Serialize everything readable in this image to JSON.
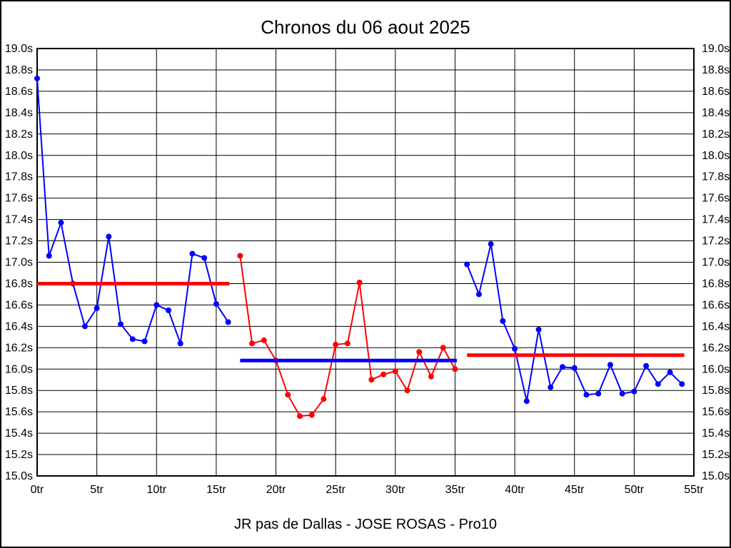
{
  "title": "Chronos du 06 aout 2025",
  "caption": "JR pas de Dallas - JOSE ROSAS - Pro10",
  "colors": {
    "blue_series": "#0000ff",
    "red_series": "#ff0000",
    "grid": "#000000",
    "text": "#000000",
    "background": "#ffffff"
  },
  "chart_data": {
    "type": "line",
    "title": "Chronos du 06 aout 2025",
    "subtitle": "JR pas de Dallas - JOSE ROSAS - Pro10",
    "xlabel": "",
    "ylabel": "",
    "x_unit": "tr",
    "y_unit": "s",
    "xlim": [
      0,
      55
    ],
    "ylim": [
      15.0,
      19.0
    ],
    "grid": true,
    "legend": "none",
    "x_ticks": {
      "values": [
        0,
        5,
        10,
        15,
        20,
        25,
        30,
        35,
        40,
        45,
        50,
        55
      ],
      "labels": [
        "0tr",
        "5tr",
        "10tr",
        "15tr",
        "20tr",
        "25tr",
        "30tr",
        "35tr",
        "40tr",
        "45tr",
        "50tr",
        "55tr"
      ]
    },
    "y_ticks": {
      "values": [
        19.0,
        18.8,
        18.6,
        18.4,
        18.2,
        18.0,
        17.8,
        17.6,
        17.4,
        17.2,
        17.0,
        16.8,
        16.6,
        16.4,
        16.2,
        16.0,
        15.8,
        15.6,
        15.4,
        15.2,
        15.0
      ],
      "labels": [
        "19.0s",
        "18.8s",
        "18.6s",
        "18.4s",
        "18.2s",
        "18.0s",
        "17.8s",
        "17.6s",
        "17.4s",
        "17.2s",
        "17.0s",
        "16.8s",
        "16.6s",
        "16.4s",
        "16.2s",
        "16.0s",
        "15.8s",
        "15.6s",
        "15.4s",
        "15.2s",
        "15.0s"
      ],
      "shown_on": "both-sides"
    },
    "series": [
      {
        "name": "stint-1",
        "color": "#0000ff",
        "x": [
          0,
          1,
          2,
          3,
          4,
          5,
          6,
          7,
          8,
          9,
          10,
          11,
          12,
          13,
          14,
          15,
          16
        ],
        "y": [
          18.72,
          17.06,
          17.37,
          16.8,
          16.4,
          16.57,
          17.24,
          16.42,
          16.28,
          16.26,
          16.6,
          16.55,
          16.24,
          17.08,
          17.04,
          16.61,
          16.44
        ]
      },
      {
        "name": "stint-2",
        "color": "#ff0000",
        "x": [
          17,
          18,
          19,
          20,
          21,
          22,
          23,
          24,
          25,
          26,
          27,
          28,
          29,
          30,
          31,
          32,
          33,
          34,
          35
        ],
        "y": [
          17.06,
          16.24,
          16.27,
          16.08,
          15.76,
          15.56,
          15.57,
          15.72,
          16.23,
          16.24,
          16.81,
          15.9,
          15.95,
          15.98,
          15.8,
          16.16,
          15.93,
          16.2,
          16.0
        ]
      },
      {
        "name": "stint-3",
        "color": "#0000ff",
        "x": [
          36,
          37,
          38,
          39,
          40,
          41,
          42,
          43,
          44,
          45,
          46,
          47,
          48,
          49,
          50,
          51,
          52,
          53,
          54
        ],
        "y": [
          16.98,
          16.7,
          17.17,
          16.45,
          16.19,
          15.7,
          16.37,
          15.83,
          16.02,
          16.01,
          15.76,
          15.77,
          16.04,
          15.77,
          15.79,
          16.03,
          15.86,
          15.97,
          15.86
        ]
      }
    ],
    "averages": [
      {
        "name": "stint-1-average",
        "color": "#ff0000",
        "y": 16.8,
        "x_start": 0,
        "x_end": 16.1
      },
      {
        "name": "stint-2-average",
        "color": "#0000ff",
        "y": 16.08,
        "x_start": 17,
        "x_end": 35.15
      },
      {
        "name": "stint-3-average",
        "color": "#ff0000",
        "y": 16.13,
        "x_start": 36,
        "x_end": 54.2
      }
    ]
  }
}
